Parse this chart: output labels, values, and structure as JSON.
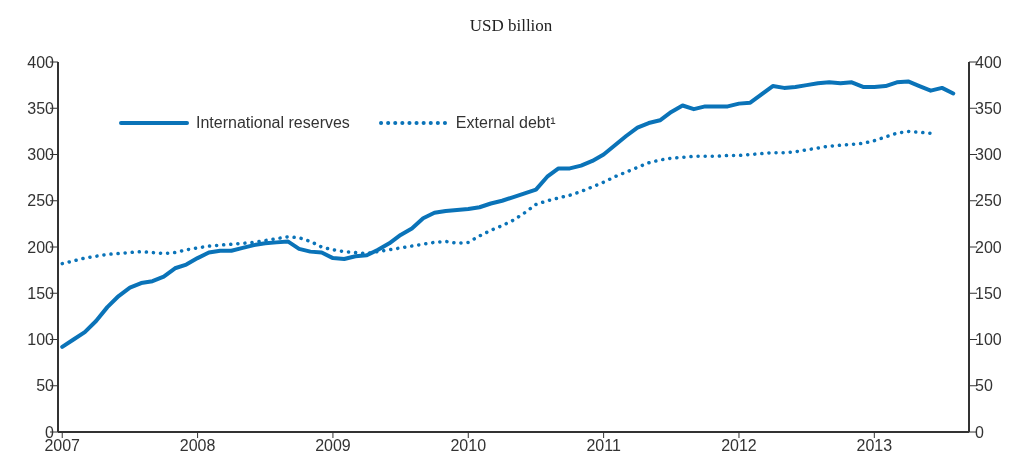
{
  "chart_data": {
    "type": "line",
    "subtitle": "USD billion",
    "xlim": [
      "2006-12-20",
      "2013-09-13"
    ],
    "xticks": [
      "2007",
      "2008",
      "2009",
      "2010",
      "2011",
      "2012",
      "2013"
    ],
    "ylim": [
      0,
      400
    ],
    "yticks": [
      0,
      50,
      100,
      150,
      200,
      250,
      300,
      350,
      400
    ],
    "y2lim": [
      0,
      400
    ],
    "y2ticks": [
      0,
      50,
      100,
      150,
      200,
      250,
      300,
      350,
      400
    ],
    "grid": false,
    "legend": "top left",
    "marker": "none",
    "series": [
      {
        "name": "International reserves",
        "color": "#0a73b8",
        "line_style": "solid",
        "x": [
          "2007-01",
          "2007-02",
          "2007-03",
          "2007-04",
          "2007-05",
          "2007-06",
          "2007-07",
          "2007-08",
          "2007-09",
          "2007-10",
          "2007-11",
          "2007-12",
          "2008-01",
          "2008-02",
          "2008-03",
          "2008-04",
          "2008-05",
          "2008-06",
          "2008-07",
          "2008-08",
          "2008-09",
          "2008-10",
          "2008-11",
          "2008-12",
          "2009-01",
          "2009-02",
          "2009-03",
          "2009-04",
          "2009-05",
          "2009-06",
          "2009-07",
          "2009-08",
          "2009-09",
          "2009-10",
          "2009-11",
          "2009-12",
          "2010-01",
          "2010-02",
          "2010-03",
          "2010-04",
          "2010-05",
          "2010-06",
          "2010-07",
          "2010-08",
          "2010-09",
          "2010-10",
          "2010-11",
          "2010-12",
          "2011-01",
          "2011-02",
          "2011-03",
          "2011-04",
          "2011-05",
          "2011-06",
          "2011-07",
          "2011-08",
          "2011-09",
          "2011-10",
          "2011-11",
          "2011-12",
          "2012-01",
          "2012-02",
          "2012-03",
          "2012-04",
          "2012-05",
          "2012-06",
          "2012-07",
          "2012-08",
          "2012-09",
          "2012-10",
          "2012-11",
          "2012-12",
          "2013-01",
          "2013-02",
          "2013-03",
          "2013-04",
          "2013-05",
          "2013-06",
          "2013-07",
          "2013-08"
        ],
        "values": [
          92,
          100,
          108,
          120,
          135,
          147,
          156,
          161,
          163,
          168,
          177,
          181,
          188,
          194,
          196,
          196,
          199,
          202,
          204,
          205,
          206,
          198,
          195,
          194,
          188,
          187,
          190,
          191,
          197,
          204,
          213,
          220,
          231,
          237,
          239,
          240,
          241,
          243,
          247,
          250,
          254,
          258,
          262,
          276,
          285,
          285,
          288,
          293,
          300,
          310,
          320,
          329,
          334,
          337,
          346,
          353,
          349,
          352,
          352,
          352,
          355,
          356,
          365,
          374,
          372,
          373,
          375,
          377,
          378,
          377,
          378,
          373,
          373,
          374,
          378,
          379,
          374,
          369,
          372,
          366
        ]
      },
      {
        "name": "External debt¹",
        "color": "#0a73b8",
        "line_style": "dotted",
        "x": [
          "2007-01",
          "2007-02",
          "2007-03",
          "2007-04",
          "2007-05",
          "2007-06",
          "2007-07",
          "2007-08",
          "2007-09",
          "2007-10",
          "2007-11",
          "2007-12",
          "2008-01",
          "2008-02",
          "2008-03",
          "2008-04",
          "2008-05",
          "2008-06",
          "2008-07",
          "2008-08",
          "2008-09",
          "2008-10",
          "2008-11",
          "2008-12",
          "2009-01",
          "2009-02",
          "2009-03",
          "2009-04",
          "2009-05",
          "2009-06",
          "2009-07",
          "2009-08",
          "2009-09",
          "2009-10",
          "2009-11",
          "2009-12",
          "2010-01",
          "2010-02",
          "2010-03",
          "2010-04",
          "2010-05",
          "2010-06",
          "2010-07",
          "2010-08",
          "2010-09",
          "2010-10",
          "2010-11",
          "2010-12",
          "2011-01",
          "2011-02",
          "2011-03",
          "2011-04",
          "2011-05",
          "2011-06",
          "2011-07",
          "2011-08",
          "2011-09",
          "2011-10",
          "2011-11",
          "2011-12",
          "2012-01",
          "2012-02",
          "2012-03",
          "2012-04",
          "2012-05",
          "2012-06",
          "2012-07",
          "2012-08",
          "2012-09",
          "2012-10",
          "2012-11",
          "2012-12",
          "2013-01",
          "2013-02",
          "2013-03",
          "2013-04",
          "2013-05",
          "2013-06"
        ],
        "values": [
          182,
          185,
          188,
          190,
          192,
          193,
          194,
          195,
          194,
          193,
          194,
          197,
          199,
          201,
          202,
          203,
          204,
          205,
          207,
          209,
          211,
          210,
          206,
          200,
          197,
          195,
          194,
          193,
          195,
          197,
          199,
          201,
          203,
          205,
          206,
          204,
          205,
          212,
          218,
          223,
          229,
          237,
          246,
          250,
          253,
          256,
          260,
          265,
          270,
          276,
          281,
          286,
          291,
          294,
          296,
          297,
          298,
          298,
          298,
          299,
          299,
          300,
          301,
          302,
          302,
          303,
          305,
          307,
          309,
          310,
          311,
          312,
          315,
          319,
          323,
          325,
          324,
          323
        ]
      }
    ]
  }
}
